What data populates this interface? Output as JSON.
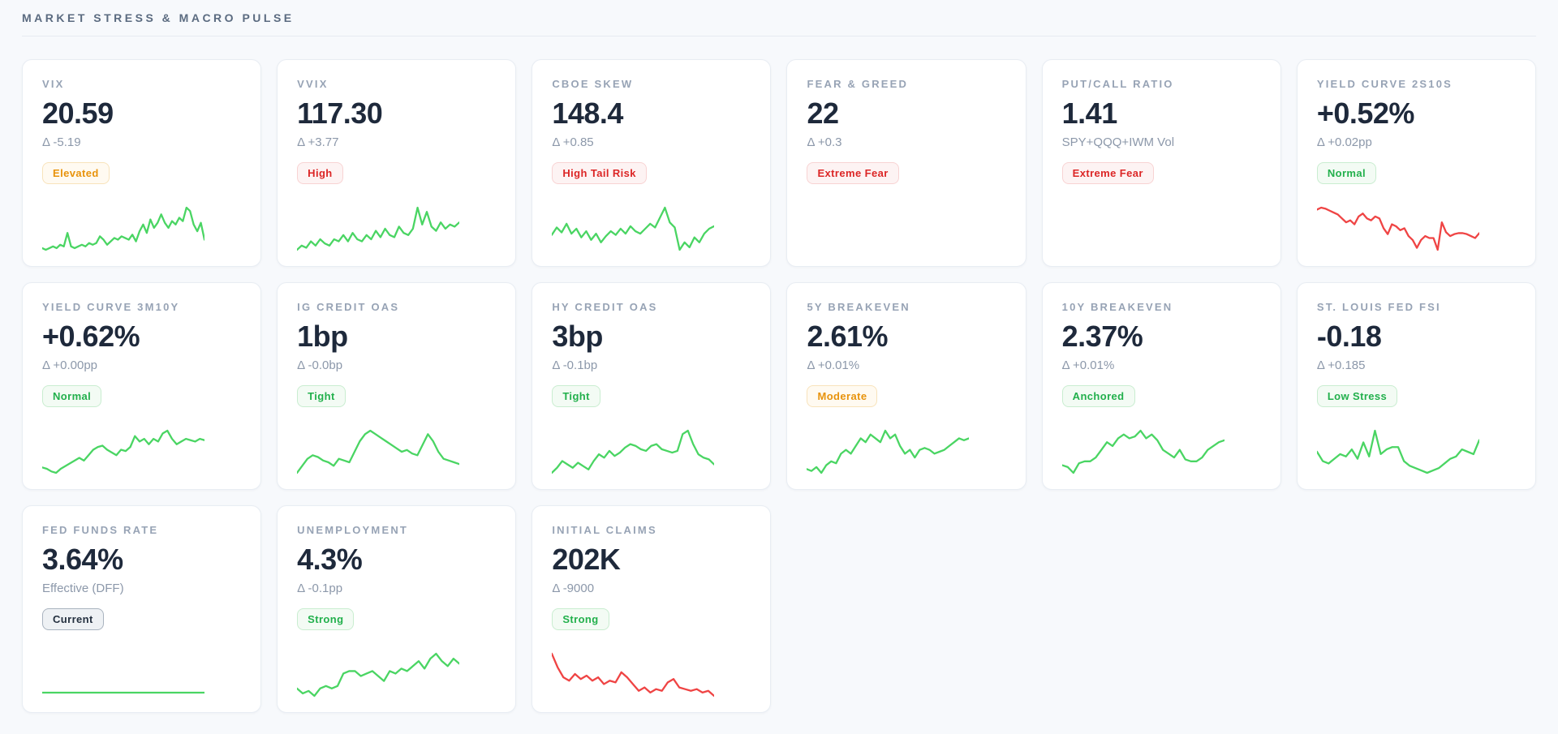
{
  "page": {
    "title": "MARKET STRESS & MACRO PULSE"
  },
  "sparkline_colors": {
    "green": "#4ad563",
    "red": "#ef4444"
  },
  "badge_tones": {
    "amber": {
      "text": "#e8930c",
      "bg": "#fffaf1",
      "border": "#f8e3bb"
    },
    "red": {
      "text": "#dc2626",
      "bg": "#fdf3f3",
      "border": "#f8d3d3"
    },
    "green": {
      "text": "#22b04c",
      "bg": "#f3fbf4",
      "border": "#c9edd0"
    },
    "neutral": {
      "text": "#24303f",
      "bg": "#eef1f4",
      "border": "#a9b3bf"
    }
  },
  "cards": [
    {
      "title": "VIX",
      "value": "20.59",
      "delta": "Δ -5.19",
      "badge": {
        "label": "Elevated",
        "tone": "amber"
      },
      "sparkline": {
        "color": "green",
        "points": [
          13,
          12,
          13,
          14,
          13,
          15,
          14,
          22,
          14,
          13,
          14,
          15,
          14,
          16,
          15,
          16,
          20,
          18,
          15,
          17,
          19,
          18,
          20,
          19,
          18,
          21,
          17,
          23,
          27,
          22,
          30,
          25,
          28,
          33,
          28,
          25,
          29,
          27,
          31,
          29,
          37,
          35,
          27,
          23,
          28,
          18
        ]
      }
    },
    {
      "title": "VVIX",
      "value": "117.30",
      "delta": "Δ +3.77",
      "badge": {
        "label": "High",
        "tone": "red"
      },
      "sparkline": {
        "color": "green",
        "points": [
          18,
          20,
          19,
          22,
          20,
          23,
          21,
          20,
          23,
          22,
          25,
          22,
          26,
          23,
          22,
          25,
          23,
          27,
          24,
          28,
          25,
          24,
          29,
          26,
          25,
          28,
          38,
          30,
          36,
          29,
          27,
          31,
          28,
          30,
          29,
          31
        ]
      }
    },
    {
      "title": "CBOE SKEW",
      "value": "148.4",
      "delta": "Δ +0.85",
      "badge": {
        "label": "High Tail Risk",
        "tone": "red"
      },
      "sparkline": {
        "color": "green",
        "points": [
          26,
          32,
          28,
          35,
          27,
          31,
          24,
          29,
          22,
          27,
          20,
          25,
          29,
          26,
          31,
          27,
          33,
          29,
          27,
          31,
          35,
          32,
          40,
          48,
          36,
          32,
          14,
          20,
          16,
          24,
          20,
          27,
          31,
          33
        ]
      }
    },
    {
      "title": "FEAR & GREED",
      "value": "22",
      "delta": "Δ +0.3",
      "badge": {
        "label": "Extreme Fear",
        "tone": "red"
      },
      "sparkline": null
    },
    {
      "title": "PUT/CALL RATIO",
      "value": "1.41",
      "delta": "SPY+QQQ+IWM Vol",
      "badge": {
        "label": "Extreme Fear",
        "tone": "red"
      },
      "sparkline": null
    },
    {
      "title": "YIELD CURVE 2S10S",
      "value": "+0.52%",
      "delta": "Δ +0.02pp",
      "badge": {
        "label": "Normal",
        "tone": "green"
      },
      "sparkline": {
        "color": "red",
        "points": [
          46,
          48,
          47,
          45,
          43,
          41,
          37,
          33,
          35,
          31,
          39,
          42,
          37,
          35,
          39,
          37,
          27,
          21,
          31,
          29,
          25,
          27,
          19,
          15,
          7,
          15,
          19,
          17,
          17,
          5,
          33,
          23,
          19,
          21,
          22,
          22,
          21,
          19,
          17,
          22
        ]
      }
    },
    {
      "title": "YIELD CURVE 3M10Y",
      "value": "+0.62%",
      "delta": "Δ +0.00pp",
      "badge": {
        "label": "Normal",
        "tone": "green"
      },
      "sparkline": {
        "color": "green",
        "points": [
          8,
          7,
          5,
          4,
          7,
          9,
          11,
          13,
          15,
          13,
          17,
          21,
          23,
          24,
          21,
          19,
          17,
          21,
          20,
          23,
          31,
          27,
          29,
          25,
          29,
          27,
          33,
          35,
          29,
          25,
          27,
          29,
          28,
          27,
          29,
          28
        ]
      }
    },
    {
      "title": "IG CREDIT OAS",
      "value": "1bp",
      "delta": "Δ -0.0bp",
      "badge": {
        "label": "Tight",
        "tone": "green"
      },
      "sparkline": {
        "color": "green",
        "points": [
          5,
          9,
          13,
          15,
          14,
          12,
          11,
          9,
          13,
          12,
          11,
          17,
          23,
          27,
          29,
          27,
          25,
          23,
          21,
          19,
          17,
          18,
          16,
          15,
          21,
          27,
          23,
          17,
          13,
          12,
          11,
          10
        ]
      }
    },
    {
      "title": "HY CREDIT OAS",
      "value": "3bp",
      "delta": "Δ -0.1bp",
      "badge": {
        "label": "Tight",
        "tone": "green"
      },
      "sparkline": {
        "color": "green",
        "points": [
          4,
          7,
          11,
          9,
          7,
          10,
          8,
          6,
          11,
          15,
          13,
          17,
          14,
          16,
          19,
          21,
          20,
          18,
          17,
          20,
          21,
          18,
          17,
          16,
          17,
          27,
          29,
          21,
          15,
          13,
          12,
          9
        ]
      }
    },
    {
      "title": "5Y BREAKEVEN",
      "value": "2.61%",
      "delta": "Δ +0.01%",
      "badge": {
        "label": "Moderate",
        "tone": "amber"
      },
      "sparkline": {
        "color": "green",
        "points": [
          7,
          6,
          8,
          5,
          9,
          11,
          10,
          15,
          17,
          15,
          19,
          23,
          21,
          25,
          23,
          21,
          27,
          23,
          25,
          19,
          15,
          17,
          13,
          17,
          18,
          17,
          15,
          16,
          17,
          19,
          21,
          23,
          22,
          23
        ]
      }
    },
    {
      "title": "10Y BREAKEVEN",
      "value": "2.37%",
      "delta": "Δ +0.01%",
      "badge": {
        "label": "Anchored",
        "tone": "green"
      },
      "sparkline": {
        "color": "green",
        "points": [
          7,
          6,
          3,
          8,
          9,
          9,
          11,
          15,
          19,
          17,
          21,
          23,
          21,
          22,
          25,
          21,
          23,
          20,
          15,
          13,
          11,
          15,
          10,
          9,
          9,
          11,
          15,
          17,
          19,
          20
        ]
      }
    },
    {
      "title": "ST. LOUIS FED FSI",
      "value": "-0.18",
      "delta": "Δ +0.185",
      "badge": {
        "label": "Low Stress",
        "tone": "green"
      },
      "sparkline": {
        "color": "green",
        "points": [
          14,
          10,
          9,
          11,
          13,
          12,
          15,
          11,
          18,
          12,
          23,
          13,
          15,
          16,
          16,
          10,
          8,
          7,
          6,
          5,
          6,
          7,
          9,
          11,
          12,
          15,
          14,
          13,
          19
        ]
      }
    },
    {
      "title": "FED FUNDS RATE",
      "value": "3.64%",
      "delta": "Effective (DFF)",
      "badge": {
        "label": "Current",
        "tone": "neutral"
      },
      "sparkline": {
        "color": "green",
        "points": [
          5,
          5,
          5,
          5,
          5,
          5,
          5,
          5,
          5,
          5
        ]
      }
    },
    {
      "title": "UNEMPLOYMENT",
      "value": "4.3%",
      "delta": "Δ -0.1pp",
      "badge": {
        "label": "Strong",
        "tone": "green"
      },
      "sparkline": {
        "color": "green",
        "points": [
          5,
          3,
          4,
          2,
          5,
          6,
          5,
          6,
          11,
          12,
          12,
          10,
          11,
          12,
          10,
          8,
          12,
          11,
          13,
          12,
          14,
          16,
          13,
          17,
          19,
          16,
          14,
          17,
          15
        ]
      }
    },
    {
      "title": "INITIAL CLAIMS",
      "value": "202K",
      "delta": "Δ -9000",
      "badge": {
        "label": "Strong",
        "tone": "green"
      },
      "sparkline": {
        "color": "red",
        "points": [
          28,
          20,
          14,
          12,
          16,
          13,
          15,
          12,
          14,
          10,
          12,
          11,
          17,
          14,
          10,
          6,
          8,
          5,
          7,
          6,
          11,
          13,
          8,
          7,
          6,
          7,
          5,
          6,
          3
        ]
      }
    }
  ]
}
